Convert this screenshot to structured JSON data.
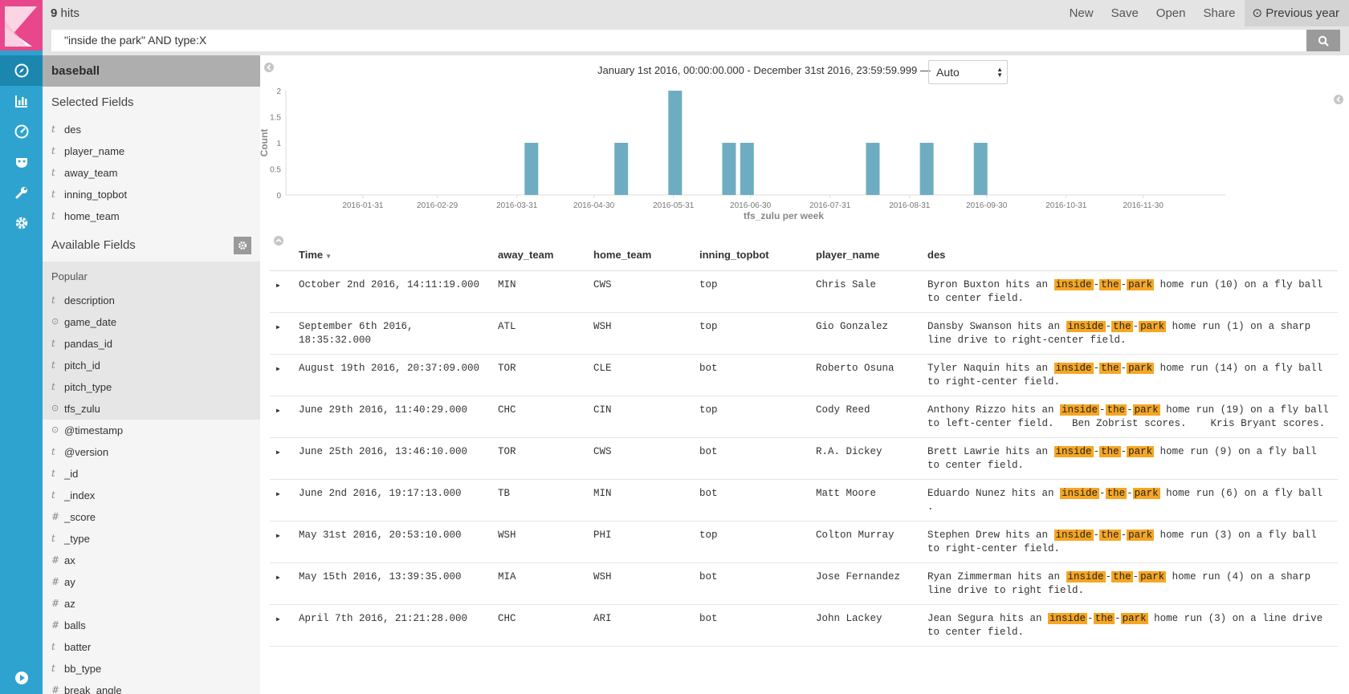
{
  "topbar": {
    "hits_count": "9",
    "hits_label": "hits",
    "menu": [
      "New",
      "Save",
      "Open",
      "Share"
    ],
    "time_picker": "Previous year"
  },
  "search": {
    "query": "\"inside the park\" AND type:X"
  },
  "sidebar": {
    "index_pattern": "baseball",
    "selected_title": "Selected Fields",
    "selected": [
      {
        "type": "t",
        "name": "des"
      },
      {
        "type": "t",
        "name": "player_name"
      },
      {
        "type": "t",
        "name": "away_team"
      },
      {
        "type": "t",
        "name": "inning_topbot"
      },
      {
        "type": "t",
        "name": "home_team"
      }
    ],
    "available_title": "Available Fields",
    "popular_title": "Popular",
    "popular": [
      {
        "type": "t",
        "name": "description"
      },
      {
        "type": "clock",
        "name": "game_date"
      },
      {
        "type": "t",
        "name": "pandas_id"
      },
      {
        "type": "t",
        "name": "pitch_id"
      },
      {
        "type": "t",
        "name": "pitch_type"
      },
      {
        "type": "clock",
        "name": "tfs_zulu"
      }
    ],
    "other": [
      {
        "type": "clock",
        "name": "@timestamp"
      },
      {
        "type": "t",
        "name": "@version"
      },
      {
        "type": "t",
        "name": "_id"
      },
      {
        "type": "t",
        "name": "_index"
      },
      {
        "type": "#",
        "name": "_score"
      },
      {
        "type": "t",
        "name": "_type"
      },
      {
        "type": "#",
        "name": "ax"
      },
      {
        "type": "#",
        "name": "ay"
      },
      {
        "type": "#",
        "name": "az"
      },
      {
        "type": "#",
        "name": "balls"
      },
      {
        "type": "t",
        "name": "batter"
      },
      {
        "type": "t",
        "name": "bb_type"
      },
      {
        "type": "#",
        "name": "break_angle"
      }
    ]
  },
  "range_text": "January 1st 2016, 00:00:00.000 - December 31st 2016, 23:59:59.999 —",
  "interval": "Auto",
  "chart_data": {
    "type": "bar",
    "xlabel": "tfs_zulu per week",
    "ylabel": "Count",
    "ylim": [
      0,
      2
    ],
    "yticks": [
      "0",
      "0.5",
      "1",
      "1.5",
      "2"
    ],
    "xticks": [
      "2016-01-31",
      "2016-02-29",
      "2016-03-31",
      "2016-04-30",
      "2016-05-31",
      "2016-06-30",
      "2016-07-31",
      "2016-08-31",
      "2016-09-30",
      "2016-10-31",
      "2016-11-30"
    ],
    "bars": [
      {
        "week": "2016-04-03",
        "value": 1
      },
      {
        "week": "2016-05-08",
        "value": 1
      },
      {
        "week": "2016-05-29",
        "value": 2
      },
      {
        "week": "2016-06-19",
        "value": 1
      },
      {
        "week": "2016-06-26",
        "value": 1
      },
      {
        "week": "2016-08-14",
        "value": 1
      },
      {
        "week": "2016-09-04",
        "value": 1
      },
      {
        "week": "2016-09-25",
        "value": 1
      }
    ],
    "color": "#6eadc1"
  },
  "table": {
    "headers": [
      "Time",
      "away_team",
      "home_team",
      "inning_topbot",
      "player_name",
      "des"
    ],
    "rows": [
      {
        "time": "October 2nd 2016, 14:11:19.000",
        "away": "MIN",
        "home": "CWS",
        "inning": "top",
        "player": "Chris Sale",
        "pre": "Byron Buxton hits an ",
        "post": " home run (10) on a fly ball to center field."
      },
      {
        "time": "September 6th 2016, 18:35:32.000",
        "away": "ATL",
        "home": "WSH",
        "inning": "top",
        "player": "Gio Gonzalez",
        "pre": "Dansby Swanson hits an ",
        "post": " home run (1) on a sharp line drive to right-center field."
      },
      {
        "time": "August 19th 2016, 20:37:09.000",
        "away": "TOR",
        "home": "CLE",
        "inning": "bot",
        "player": "Roberto Osuna",
        "pre": "Tyler Naquin hits an ",
        "post": " home run (14) on a fly ball to right-center field."
      },
      {
        "time": "June 29th 2016, 11:40:29.000",
        "away": "CHC",
        "home": "CIN",
        "inning": "top",
        "player": "Cody Reed",
        "pre": "Anthony Rizzo hits an ",
        "post": " home run (19) on a fly ball to left-center field.   Ben Zobrist scores.    Kris Bryant scores."
      },
      {
        "time": "June 25th 2016, 13:46:10.000",
        "away": "TOR",
        "home": "CWS",
        "inning": "bot",
        "player": "R.A. Dickey",
        "pre": "Brett Lawrie hits an ",
        "post": " home run (9) on a fly ball to center field."
      },
      {
        "time": "June 2nd 2016, 19:17:13.000",
        "away": "TB",
        "home": "MIN",
        "inning": "bot",
        "player": "Matt Moore",
        "pre": "Eduardo Nunez hits an ",
        "post": " home run (6) on a fly ball ."
      },
      {
        "time": "May 31st 2016, 20:53:10.000",
        "away": "WSH",
        "home": "PHI",
        "inning": "top",
        "player": "Colton Murray",
        "pre": "Stephen Drew hits an ",
        "post": " home run (3) on a fly ball to right-center field."
      },
      {
        "time": "May 15th 2016, 13:39:35.000",
        "away": "MIA",
        "home": "WSH",
        "inning": "bot",
        "player": "Jose Fernandez",
        "pre": "Ryan Zimmerman hits an ",
        "post": " home run (4) on a sharp line drive to right field."
      },
      {
        "time": "April 7th 2016, 21:21:28.000",
        "away": "CHC",
        "home": "ARI",
        "inning": "bot",
        "player": "John Lackey",
        "pre": "Jean Segura hits an ",
        "post": " home run (3) on a line drive to center field."
      }
    ],
    "highlight_words": [
      "inside",
      "the",
      "park"
    ]
  }
}
